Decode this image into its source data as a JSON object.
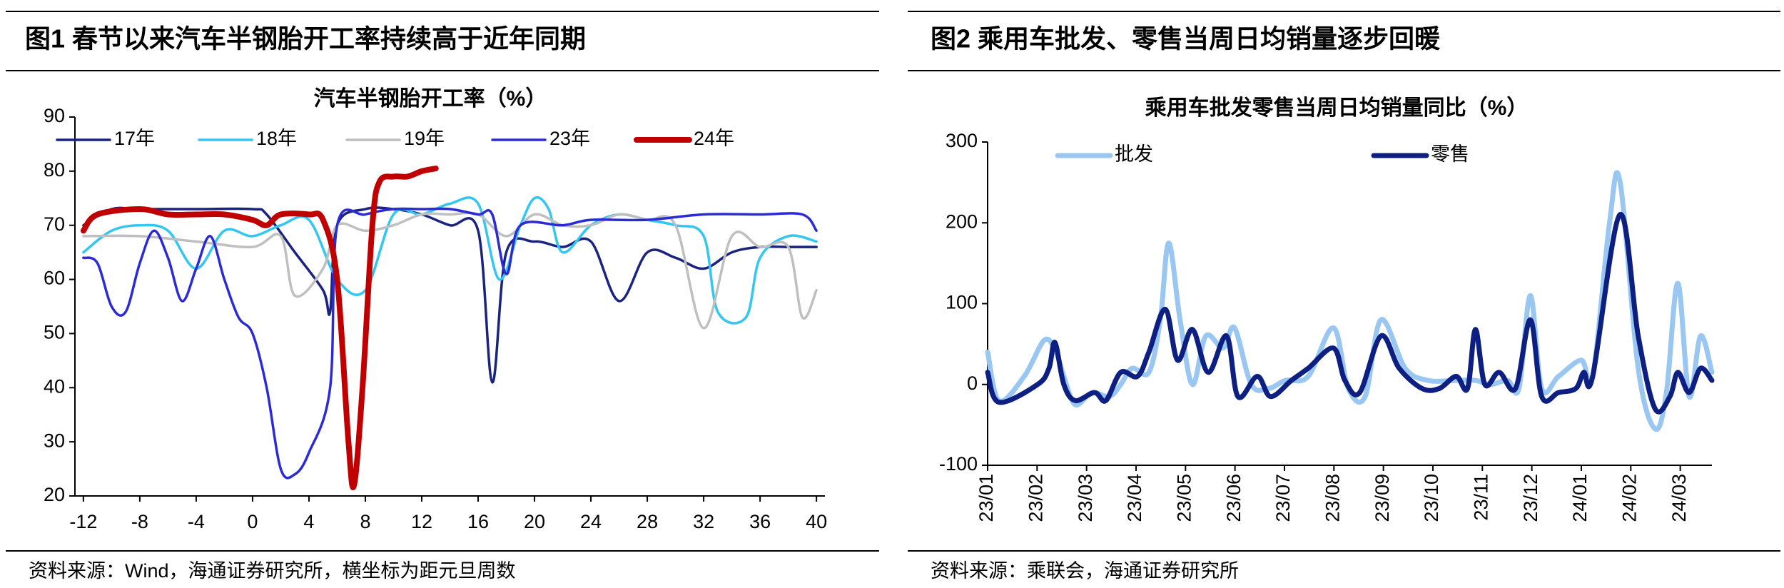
{
  "chart_data": [
    {
      "type": "line",
      "figure_title": "图1  春节以来汽车半钢胎开工率持续高于近年同期",
      "title": "汽车半钢胎开工率（%）",
      "source": "资料来源：Wind，海通证券研究所，横坐标为距元旦周数",
      "xlim": [
        -12.6,
        40.6
      ],
      "xticks": [
        -12,
        -8,
        -4,
        0,
        4,
        8,
        12,
        16,
        20,
        24,
        28,
        32,
        36,
        40
      ],
      "ylim": [
        20,
        90
      ],
      "yticks": [
        20,
        30,
        40,
        50,
        60,
        70,
        80,
        90
      ],
      "grid": false,
      "legend": "top",
      "series": [
        {
          "name": "17年",
          "color": "#1a237e",
          "x": [
            -12,
            -10,
            -8,
            -4,
            0,
            1,
            3,
            5,
            5.5,
            6,
            8,
            10,
            12,
            14,
            16,
            17,
            18,
            20,
            22,
            24,
            26,
            28,
            30,
            32,
            34,
            36,
            38,
            40
          ],
          "values": [
            70,
            73,
            73,
            73,
            73,
            72,
            65,
            58,
            54,
            70,
            73,
            73,
            72,
            70,
            69,
            41,
            65,
            67,
            66,
            67,
            56,
            65,
            64,
            62,
            65,
            66,
            66,
            66
          ]
        },
        {
          "name": "18年",
          "color": "#33c6f0",
          "x": [
            -12,
            -10,
            -8,
            -6,
            -4,
            -2,
            0,
            2,
            4,
            6,
            8,
            10,
            12,
            14,
            16,
            17.5,
            19,
            20,
            21,
            22,
            24,
            26,
            28,
            30,
            32,
            33,
            35,
            36,
            38,
            40
          ],
          "values": [
            65,
            69,
            70,
            69,
            62,
            69,
            68,
            70,
            71,
            60,
            58,
            72,
            72,
            74,
            74,
            60,
            70,
            75,
            73,
            65,
            70,
            72,
            71,
            70,
            68,
            54,
            53,
            64,
            68,
            67
          ]
        },
        {
          "name": "19年",
          "color": "#bfbfbf",
          "x": [
            -12,
            -8,
            -4,
            0,
            2,
            3,
            5,
            6,
            8,
            10,
            12,
            14,
            16,
            18,
            20,
            22,
            24,
            26,
            28,
            30,
            32,
            34,
            36,
            38,
            39,
            40
          ],
          "values": [
            68,
            68,
            67,
            66,
            68,
            57,
            62,
            70,
            69,
            70,
            72,
            72,
            72,
            68,
            72,
            70,
            70,
            72,
            71,
            70,
            51,
            68,
            66,
            66,
            53,
            58
          ]
        },
        {
          "name": "23年",
          "color": "#2b2bd6",
          "x": [
            -12,
            -11,
            -10,
            -9,
            -8,
            -7,
            -6,
            -5,
            -4,
            -3,
            -2,
            -1,
            0,
            1,
            2,
            3,
            4,
            5.5,
            6,
            8,
            10,
            12,
            14,
            16,
            17,
            18,
            19,
            22,
            24,
            28,
            32,
            36,
            39,
            40
          ],
          "values": [
            64,
            63,
            55,
            54,
            63,
            69,
            64,
            56,
            62,
            68,
            60,
            53,
            50,
            40,
            25,
            24,
            28,
            40,
            70,
            72,
            73,
            73,
            73,
            72,
            72,
            61,
            70,
            70,
            71,
            71,
            72,
            72,
            72,
            69
          ]
        },
        {
          "name": "24年",
          "color": "#c00000",
          "x": [
            -12,
            -11,
            -8,
            -6,
            -4,
            -2,
            0,
            1,
            2,
            4,
            5,
            6,
            6.8,
            7.2,
            7.8,
            8.5,
            9,
            10,
            11,
            12,
            13
          ],
          "values": [
            69,
            72,
            73,
            72,
            72,
            72,
            71,
            70,
            72,
            72,
            71,
            60,
            30,
            22,
            40,
            70,
            78,
            79,
            79,
            80,
            80.5
          ]
        }
      ]
    },
    {
      "type": "line",
      "figure_title": "图2  乘用车批发、零售当周日均销量逐步回暖",
      "title": "乘用车批发零售当周日均销量同比（%）",
      "source": "资料来源：乘联会，海通证券研究所",
      "xlim": [
        0,
        14.64
      ],
      "xticks": [
        {
          "value": 0,
          "label": "23/01"
        },
        {
          "value": 1,
          "label": "23/02"
        },
        {
          "value": 2,
          "label": "23/03"
        },
        {
          "value": 3,
          "label": "23/04"
        },
        {
          "value": 4,
          "label": "23/05"
        },
        {
          "value": 5,
          "label": "23/06"
        },
        {
          "value": 6,
          "label": "23/07"
        },
        {
          "value": 7,
          "label": "23/08"
        },
        {
          "value": 8,
          "label": "23/09"
        },
        {
          "value": 9,
          "label": "23/10"
        },
        {
          "value": 10,
          "label": "23/11"
        },
        {
          "value": 11,
          "label": "23/12"
        },
        {
          "value": 12,
          "label": "24/01"
        },
        {
          "value": 13,
          "label": "24/02"
        },
        {
          "value": 14,
          "label": "24/03"
        }
      ],
      "ylim": [
        -100,
        300
      ],
      "yticks": [
        -100,
        0,
        100,
        200,
        300
      ],
      "grid": false,
      "legend": "top",
      "series": [
        {
          "name": "批发",
          "color": "#9ac7f2",
          "x": [
            0,
            0.23,
            0.74,
            1.15,
            1.38,
            1.54,
            1.77,
            2.11,
            2.46,
            2.69,
            2.92,
            3.26,
            3.49,
            3.66,
            3.89,
            4.14,
            4.41,
            4.76,
            4.99,
            5.33,
            5.68,
            6.02,
            6.48,
            6.99,
            7.29,
            7.63,
            7.95,
            8.44,
            8.9,
            9.47,
            9.86,
            10.16,
            10.51,
            10.74,
            10.97,
            11.2,
            11.54,
            12.0,
            12.23,
            12.57,
            12.78,
            13.15,
            13.49,
            13.72,
            13.95,
            14.18,
            14.41,
            14.64
          ],
          "values": [
            40,
            -20,
            10,
            55,
            40,
            10,
            -25,
            -10,
            -15,
            0,
            20,
            15,
            80,
            175,
            80,
            0,
            60,
            45,
            70,
            0,
            -5,
            5,
            10,
            70,
            -5,
            -15,
            80,
            20,
            5,
            5,
            5,
            0,
            5,
            -5,
            110,
            -5,
            10,
            30,
            10,
            200,
            252,
            20,
            -55,
            -10,
            125,
            -15,
            60,
            15
          ]
        },
        {
          "name": "零售",
          "color": "#0d1f80",
          "x": [
            0,
            0.23,
            1.01,
            1.24,
            1.36,
            1.54,
            1.77,
            2.16,
            2.39,
            2.69,
            3.03,
            3.26,
            3.59,
            3.84,
            4.14,
            4.46,
            4.83,
            5.06,
            5.45,
            5.72,
            6.14,
            6.48,
            6.99,
            7.22,
            7.52,
            7.95,
            8.32,
            8.78,
            9.13,
            9.47,
            9.7,
            9.86,
            10.05,
            10.34,
            10.67,
            10.97,
            11.2,
            11.54,
            11.89,
            12.05,
            12.23,
            12.78,
            13.15,
            13.49,
            13.79,
            13.95,
            14.18,
            14.41,
            14.64
          ],
          "values": [
            15,
            -22,
            0,
            20,
            52,
            0,
            -20,
            -10,
            -20,
            15,
            10,
            40,
            93,
            30,
            68,
            15,
            60,
            -15,
            10,
            -15,
            5,
            20,
            45,
            5,
            -10,
            60,
            20,
            -5,
            -5,
            10,
            -5,
            68,
            0,
            15,
            -5,
            80,
            -15,
            -10,
            -5,
            15,
            10,
            210,
            60,
            -30,
            -15,
            15,
            -10,
            20,
            5
          ]
        }
      ]
    }
  ]
}
